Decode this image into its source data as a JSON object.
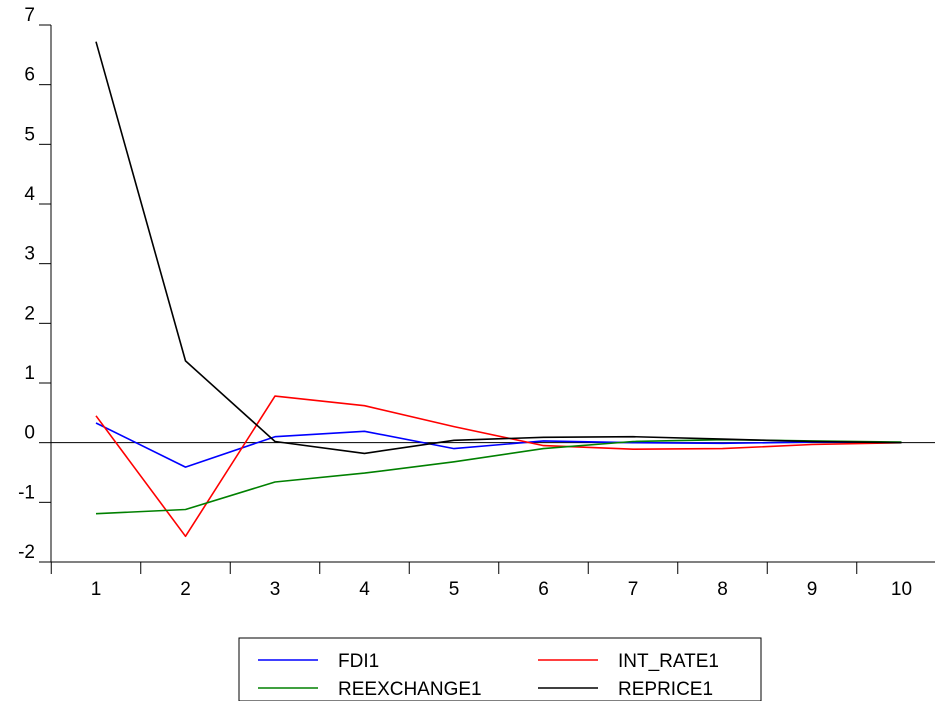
{
  "chart_data": {
    "type": "line",
    "title": "",
    "xlabel": "",
    "ylabel": "",
    "x": [
      1,
      2,
      3,
      4,
      5,
      6,
      7,
      8,
      9,
      10
    ],
    "x_tick_labels": [
      "1",
      "2",
      "3",
      "4",
      "5",
      "6",
      "7",
      "8",
      "9",
      "10"
    ],
    "ylim": [
      -2,
      7
    ],
    "y_ticks": [
      -2,
      -1,
      0,
      1,
      2,
      3,
      4,
      5,
      6,
      7
    ],
    "y_tick_labels": [
      "-2",
      "-1",
      "0",
      "1",
      "2",
      "3",
      "4",
      "5",
      "6",
      "7"
    ],
    "grid": false,
    "zero_line": true,
    "legend_position": "bottom-center",
    "series": [
      {
        "name": "FDI1",
        "color": "#0000ff",
        "values": [
          0.33,
          -0.41,
          0.1,
          0.19,
          -0.1,
          0.03,
          0.0,
          -0.01,
          0.01,
          0.0
        ]
      },
      {
        "name": "INT_RATE1",
        "color": "#ff0000",
        "values": [
          0.45,
          -1.57,
          0.78,
          0.62,
          0.27,
          -0.05,
          -0.11,
          -0.1,
          -0.03,
          0.0
        ]
      },
      {
        "name": "REEXCHANGE1",
        "color": "#008000",
        "values": [
          -1.19,
          -1.12,
          -0.66,
          -0.51,
          -0.32,
          -0.1,
          0.02,
          0.05,
          0.03,
          0.01
        ]
      },
      {
        "name": "REPRICE1",
        "color": "#000000",
        "values": [
          6.72,
          1.37,
          0.02,
          -0.18,
          0.04,
          0.09,
          0.1,
          0.06,
          0.02,
          0.0
        ]
      }
    ]
  }
}
